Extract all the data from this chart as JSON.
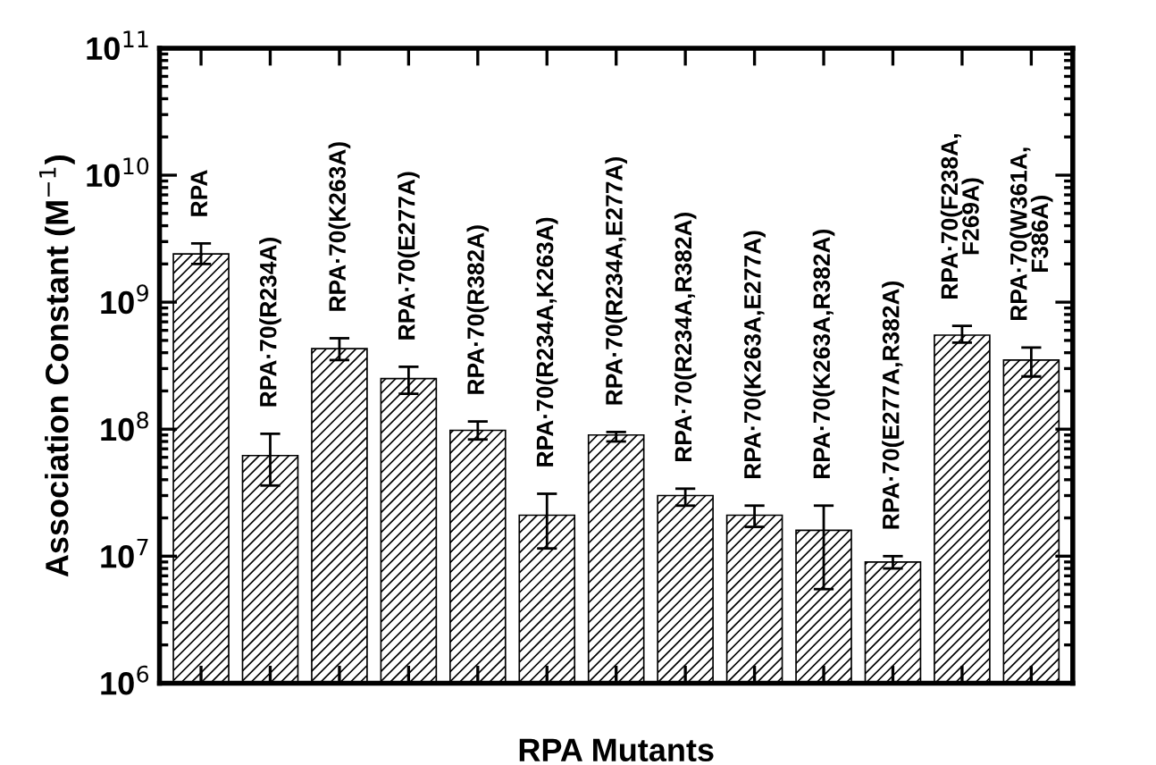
{
  "chart_data": {
    "type": "bar",
    "xlabel": "RPA Mutants",
    "ylabel": "Association Constant (M$^{−1}$)",
    "categories": [
      "RPA",
      "RPA·70(R234A)",
      "RPA·70(K263A)",
      "RPA·70(E277A)",
      "RPA·70(R382A)",
      "RPA·70(R234A,K263A)",
      "RPA·70(R234A,E277A)",
      "RPA·70(R234A,R382A)",
      "RPA·70(K263A,E277A)",
      "RPA·70(K263A,R382A)",
      "RPA·70(E277A,R382A)",
      "RPA·70(F238A,\nF269A)",
      "RPA·70(W361A,\nF386A)"
    ],
    "values": [
      2400000000,
      62000000,
      430000000,
      250000000,
      98000000,
      21000000,
      90000000,
      30000000,
      21000000,
      16000000,
      9000000,
      550000000,
      350000000
    ],
    "errors": [
      [
        2000000000,
        2900000000
      ],
      [
        36000000,
        92000000
      ],
      [
        350000000,
        520000000
      ],
      [
        190000000,
        310000000
      ],
      [
        83000000,
        115000000
      ],
      [
        11500000,
        31000000
      ],
      [
        80000000,
        95000000
      ],
      [
        25000000,
        34000000
      ],
      [
        17000000,
        25000000
      ],
      [
        5500000,
        25000000
      ],
      [
        8000000,
        10000000
      ],
      [
        480000000,
        650000000
      ],
      [
        260000000,
        440000000
      ]
    ],
    "color": "#000000",
    "log": true,
    "ylim": [
      1000000,
      100000000000
    ],
    "yticks": [
      {
        "value": 1000000,
        "label": "10$^{6}$"
      },
      {
        "value": 10000000,
        "label": "10$^{7}$"
      },
      {
        "value": 100000000,
        "label": "10$^{8}$"
      },
      {
        "value": 1000000000,
        "label": "10$^{9}$"
      },
      {
        "value": 10000000000,
        "label": "10$^{10}$"
      },
      {
        "value": 100000000000,
        "label": "10$^{11}$"
      }
    ],
    "tick_labels": "y",
    "grid": false,
    "legend": false
  }
}
